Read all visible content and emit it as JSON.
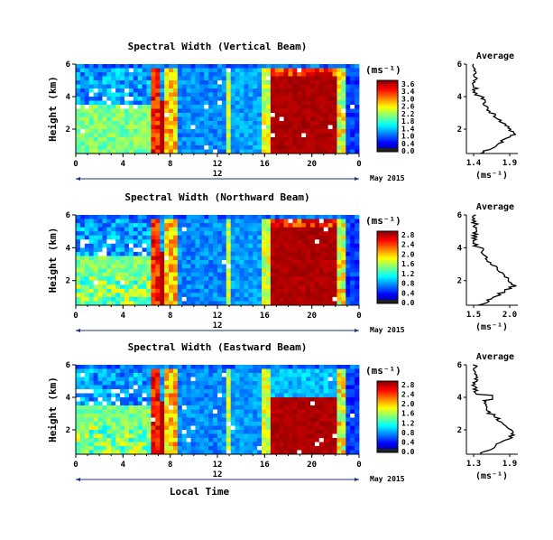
{
  "chart_data": [
    {
      "type": "heatmap",
      "title": "Spectral Width (Vertical Beam)",
      "ylabel": "Height (km)",
      "x_ticks": [
        "0",
        "4",
        "8",
        "12",
        "16",
        "20",
        "0"
      ],
      "x_date_tick": "12",
      "date_label": "May 2015",
      "y_ticks": [
        "6",
        "4",
        "2"
      ],
      "xlim": [
        0,
        24
      ],
      "ylim": [
        0.5,
        6
      ],
      "colorbar": {
        "unit": "(ms⁻¹)",
        "labels": [
          "3.6",
          "3.4",
          "3.0",
          "2.6",
          "2.2",
          "1.8",
          "1.4",
          "1.0",
          "0.4",
          "0.0"
        ]
      },
      "profile": {
        "title": "Average",
        "xlabel": "(ms⁻¹)",
        "x_ticks": [
          "1.4",
          "1.9"
        ],
        "xlim": [
          1.4,
          1.9
        ],
        "y_ticks": [
          "6",
          "4",
          "2"
        ]
      }
    },
    {
      "type": "heatmap",
      "title": "Spectral Width (Northward Beam)",
      "ylabel": "Height (km)",
      "x_ticks": [
        "0",
        "4",
        "8",
        "12",
        "16",
        "20",
        "0"
      ],
      "x_date_tick": "12",
      "date_label": "May 2015",
      "y_ticks": [
        "6",
        "4",
        "2"
      ],
      "xlim": [
        0,
        24
      ],
      "ylim": [
        0.5,
        6
      ],
      "colorbar": {
        "unit": "(ms⁻¹)",
        "labels": [
          "2.8",
          "2.4",
          "2.0",
          "1.6",
          "1.2",
          "0.8",
          "0.4",
          "0.0"
        ]
      },
      "profile": {
        "title": "Average",
        "xlabel": "(ms⁻¹)",
        "x_ticks": [
          "1.5",
          "2.0"
        ],
        "xlim": [
          1.3,
          2.1
        ],
        "y_ticks": [
          "6",
          "4",
          "2"
        ]
      }
    },
    {
      "type": "heatmap",
      "title": "Spectral Width (Eastward Beam)",
      "ylabel": "Height (km)",
      "xlabel": "Local Time",
      "x_ticks": [
        "0",
        "4",
        "8",
        "12",
        "16",
        "20",
        "0"
      ],
      "x_date_tick": "12",
      "date_label": "May 2015",
      "y_ticks": [
        "6",
        "4",
        "2"
      ],
      "xlim": [
        0,
        24
      ],
      "ylim": [
        0.5,
        6
      ],
      "colorbar": {
        "unit": "(ms⁻¹)",
        "labels": [
          "2.8",
          "2.4",
          "2.0",
          "1.6",
          "1.2",
          "0.8",
          "0.4",
          "0.0"
        ]
      },
      "profile": {
        "title": "Average",
        "xlabel": "(ms⁻¹)",
        "x_ticks": [
          "1.3",
          "1.9"
        ],
        "xlim": [
          1.3,
          1.9
        ],
        "y_ticks": [
          "6",
          "4",
          "2"
        ]
      }
    }
  ]
}
